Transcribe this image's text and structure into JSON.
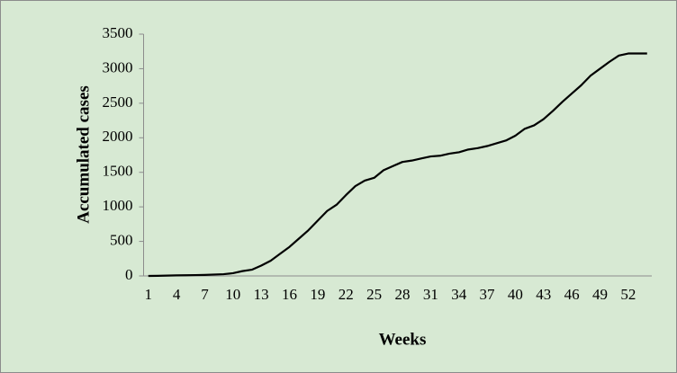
{
  "chart_data": {
    "type": "line",
    "categories": [
      "1",
      null,
      null,
      "4",
      null,
      null,
      "7",
      null,
      null,
      "10",
      null,
      null,
      "13",
      null,
      null,
      "16",
      null,
      null,
      "19",
      null,
      null,
      "22",
      null,
      null,
      "25",
      null,
      null,
      "28",
      null,
      null,
      "31",
      null,
      null,
      "34",
      null,
      null,
      "37",
      null,
      null,
      "40",
      null,
      null,
      "43",
      null,
      null,
      "46",
      null,
      null,
      "49",
      null,
      null,
      "52",
      null,
      null
    ],
    "series": [
      {
        "name": "Accumulated cases",
        "color": "#000000",
        "values": [
          0,
          2,
          5,
          8,
          10,
          12,
          15,
          20,
          25,
          40,
          70,
          90,
          150,
          220,
          320,
          420,
          540,
          660,
          800,
          940,
          1030,
          1170,
          1300,
          1380,
          1420,
          1530,
          1590,
          1650,
          1670,
          1700,
          1730,
          1740,
          1770,
          1790,
          1830,
          1850,
          1880,
          1920,
          1960,
          2030,
          2130,
          2180,
          2270,
          2390,
          2520,
          2640,
          2760,
          2900,
          3000,
          3100,
          3190,
          3220,
          3220,
          3220
        ]
      }
    ],
    "x_label": "Weeks",
    "y_label": "Accumulated cases",
    "ylim": [
      0,
      3500
    ],
    "yticks": [
      0,
      500,
      1000,
      1500,
      2000,
      2500,
      3000,
      3500
    ]
  }
}
